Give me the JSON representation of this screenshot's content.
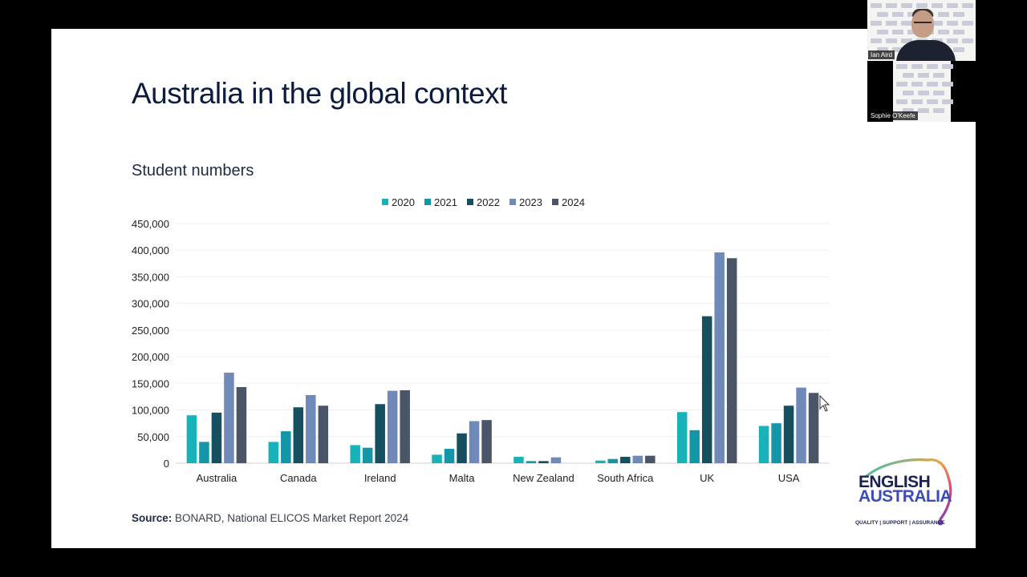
{
  "slide": {
    "title": "Australia in the global context",
    "source_label": "Source:",
    "source_text": " BONARD, National ELICOS Market Report 2024"
  },
  "chart_data": {
    "type": "bar",
    "title": "Student numbers",
    "categories": [
      "Australia",
      "Canada",
      "Ireland",
      "Malta",
      "New Zealand",
      "South Africa",
      "UK",
      "USA"
    ],
    "series": [
      {
        "name": "2020",
        "color": "#17b3b8",
        "values": [
          90000,
          40000,
          34000,
          16000,
          12000,
          5000,
          96000,
          70000
        ]
      },
      {
        "name": "2021",
        "color": "#1496a8",
        "values": [
          40000,
          60000,
          29000,
          27000,
          4000,
          8000,
          62000,
          75000
        ]
      },
      {
        "name": "2022",
        "color": "#164f5f",
        "values": [
          95000,
          105000,
          111000,
          56000,
          4000,
          12000,
          276000,
          108000
        ]
      },
      {
        "name": "2023",
        "color": "#6f8ab8",
        "values": [
          170000,
          128000,
          136000,
          79000,
          11000,
          14000,
          396000,
          142000
        ]
      },
      {
        "name": "2024",
        "color": "#4a5568",
        "values": [
          143000,
          108000,
          137000,
          81000,
          0,
          14000,
          385000,
          132000
        ]
      }
    ],
    "ylim": [
      0,
      450000
    ],
    "yticks": [
      "0",
      "50,000",
      "100,000",
      "150,000",
      "200,000",
      "250,000",
      "300,000",
      "350,000",
      "400,000",
      "450,000"
    ],
    "legend_position": "top-center",
    "grid": true
  },
  "logo": {
    "line1": "ENGLISH",
    "line2": "AUSTRALIA",
    "tagline": "QUALITY | SUPPORT | ASSURANCE"
  },
  "video": {
    "participant1": "Ian Aird",
    "participant2": "Sophie O'Keefe"
  }
}
